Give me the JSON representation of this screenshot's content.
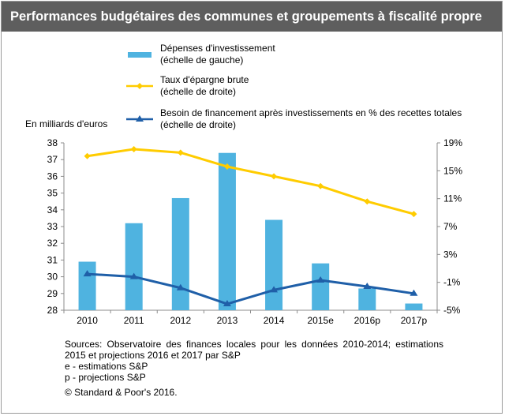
{
  "title": "Performances budgétaires des communes et groupements à fiscalité propre",
  "legend": [
    {
      "line1": "Dépenses d'investissement",
      "line2": "(échelle de gauche)",
      "color": "#4fb3e0",
      "icon": "bar-swatch"
    },
    {
      "line1": "Taux d'épargne brute",
      "line2": "(échelle de droite)",
      "color": "#ffcc00",
      "icon": "line-diamond-marker"
    },
    {
      "line1": "Besoin de financement après investissements en % des recettes totales",
      "line2": "(échelle de droite)",
      "color": "#1f5fa8",
      "icon": "line-triangle-marker"
    }
  ],
  "left_axis_title": "En milliards d'euros",
  "chart_data": {
    "type": "bar+line",
    "title": "Performances budgétaires des communes et groupements à fiscalité propre",
    "categories": [
      "2010",
      "2011",
      "2012",
      "2013",
      "2014",
      "2015e",
      "2016p",
      "2017p"
    ],
    "left_axis": {
      "label": "En milliards d'euros",
      "ylim": [
        28,
        38
      ],
      "ticks": [
        "28",
        "29",
        "30",
        "31",
        "32",
        "33",
        "34",
        "35",
        "36",
        "37",
        "38"
      ]
    },
    "right_axis": {
      "ylim": [
        -5,
        19
      ],
      "ticks": [
        "-5%",
        "-1%",
        "3%",
        "7%",
        "11%",
        "15%",
        "19%"
      ]
    },
    "series": [
      {
        "name": "Dépenses d'investissement",
        "type": "bar",
        "axis": "left",
        "color": "#4fb3e0",
        "values": [
          30.9,
          33.2,
          34.7,
          37.4,
          33.4,
          30.8,
          29.3,
          28.4
        ]
      },
      {
        "name": "Taux d'épargne brute",
        "type": "line",
        "axis": "right",
        "color": "#ffcc00",
        "marker": "diamond",
        "values": [
          17.1,
          18.1,
          17.6,
          15.6,
          14.2,
          12.8,
          10.6,
          8.8
        ]
      },
      {
        "name": "Besoin de financement après investissements en % des recettes totales",
        "type": "line",
        "axis": "right",
        "color": "#1f5fa8",
        "marker": "triangle",
        "values": [
          0.2,
          -0.2,
          -1.8,
          -4.1,
          -2.1,
          -0.7,
          -1.6,
          -2.6
        ]
      }
    ],
    "grid": false
  },
  "sources": {
    "line1": "Sources:  Observatoire des finances locales pour les données 2010-2014;  estimations",
    "line2": "2015 et projections 2016 et 2017 par S&P",
    "line3": "e - estimations S&P",
    "line4": "p -  projections S&P"
  },
  "copyright": "© Standard & Poor's 2016."
}
